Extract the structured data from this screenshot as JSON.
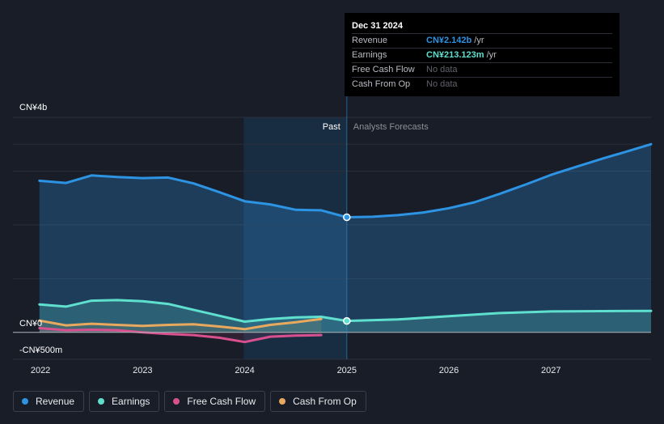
{
  "chart_data": {
    "type": "area",
    "title": "",
    "y_axis": {
      "top_label": "CN¥4b",
      "zero_label": "CN¥0",
      "bottom_label": "-CN¥500m",
      "ylim": [
        -500,
        4000
      ],
      "unit": "CN¥ millions"
    },
    "x_axis": {
      "ticks": [
        "2022",
        "2023",
        "2024",
        "2025",
        "2026",
        "2027"
      ],
      "tick_values": [
        2022,
        2023,
        2024,
        2025,
        2026,
        2027
      ],
      "xlim": [
        2021.73,
        2027.98
      ]
    },
    "divider": {
      "x": 2025.0,
      "past_label": "Past",
      "forecast_label": "Analysts Forecasts",
      "highlight_start": 2023.99
    },
    "gridlines": [
      0,
      1000,
      2000,
      3000,
      3500
    ],
    "series": [
      {
        "name": "Revenue",
        "color": "#2d93e3",
        "x": [
          2021.99,
          2022.25,
          2022.5,
          2022.75,
          2023.0,
          2023.25,
          2023.5,
          2023.75,
          2024.0,
          2024.25,
          2024.5,
          2024.75,
          2025.0,
          2025.25,
          2025.5,
          2025.75,
          2026.0,
          2026.25,
          2026.5,
          2026.75,
          2027.0,
          2027.25,
          2027.5,
          2027.75,
          2027.98
        ],
        "values": [
          2820,
          2780,
          2920,
          2890,
          2870,
          2880,
          2770,
          2610,
          2440,
          2380,
          2280,
          2270,
          2142,
          2150,
          2180,
          2230,
          2310,
          2420,
          2580,
          2750,
          2930,
          3080,
          3230,
          3370,
          3500
        ]
      },
      {
        "name": "Earnings",
        "color": "#5fe0cf",
        "x": [
          2021.99,
          2022.25,
          2022.5,
          2022.75,
          2023.0,
          2023.25,
          2023.5,
          2023.75,
          2024.0,
          2024.25,
          2024.5,
          2024.75,
          2025.0,
          2025.5,
          2026.0,
          2026.5,
          2027.0,
          2027.5,
          2027.98
        ],
        "values": [
          520,
          480,
          590,
          600,
          580,
          530,
          420,
          310,
          200,
          250,
          280,
          290,
          213,
          240,
          300,
          360,
          390,
          395,
          400
        ]
      },
      {
        "name": "Free Cash Flow",
        "color": "#d9508f",
        "x": [
          2021.99,
          2022.25,
          2022.5,
          2022.75,
          2023.0,
          2023.25,
          2023.5,
          2023.75,
          2024.0,
          2024.25,
          2024.5,
          2024.75
        ],
        "values": [
          80,
          40,
          50,
          40,
          0,
          -30,
          -50,
          -100,
          -180,
          -80,
          -60,
          -50
        ]
      },
      {
        "name": "Cash From Op",
        "color": "#e8a95e",
        "x": [
          2021.99,
          2022.25,
          2022.5,
          2022.75,
          2023.0,
          2023.25,
          2023.5,
          2023.75,
          2024.0,
          2024.25,
          2024.5,
          2024.75
        ],
        "values": [
          220,
          130,
          160,
          140,
          120,
          140,
          150,
          110,
          60,
          140,
          190,
          250
        ]
      }
    ],
    "markers": [
      {
        "series": "Revenue",
        "x": 2025.0,
        "value": 2142
      },
      {
        "series": "Earnings",
        "x": 2025.0,
        "value": 213
      }
    ]
  },
  "tooltip": {
    "date": "Dec 31 2024",
    "rows": [
      {
        "label": "Revenue",
        "value": "CN¥2.142b",
        "unit": "/yr",
        "color": "#2d93e3"
      },
      {
        "label": "Earnings",
        "value": "CN¥213.123m",
        "unit": "/yr",
        "color": "#5fe0cf"
      },
      {
        "label": "Free Cash Flow",
        "value": "No data"
      },
      {
        "label": "Cash From Op",
        "value": "No data"
      }
    ]
  },
  "legend": [
    {
      "label": "Revenue",
      "color": "#2d93e3"
    },
    {
      "label": "Earnings",
      "color": "#5fe0cf"
    },
    {
      "label": "Free Cash Flow",
      "color": "#d9508f"
    },
    {
      "label": "Cash From Op",
      "color": "#e8a95e"
    }
  ]
}
